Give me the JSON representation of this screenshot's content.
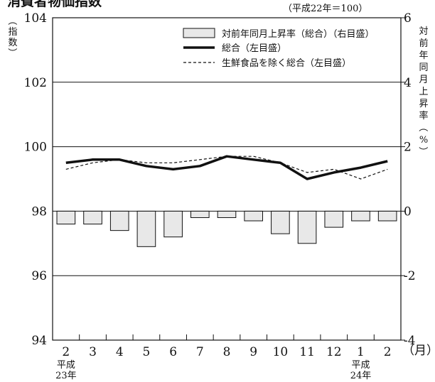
{
  "chart_data": {
    "type": "bar+line",
    "title": "消費者物価指数",
    "base_note": "（平成22年＝100）",
    "left_axis": {
      "label": "（指数）",
      "min": 94,
      "max": 104,
      "ticks": [
        94,
        96,
        98,
        100,
        102,
        104
      ]
    },
    "right_axis": {
      "label": "対前年同月上昇率（%）",
      "min": -4,
      "max": 6,
      "ticks": [
        -4,
        -2,
        0,
        2,
        4,
        6
      ]
    },
    "categories": [
      "2",
      "3",
      "4",
      "5",
      "6",
      "7",
      "8",
      "9",
      "10",
      "11",
      "12",
      "1",
      "2"
    ],
    "x_unit": "（月）",
    "year_labels": [
      {
        "index": 0,
        "era": "平成",
        "year": "23年"
      },
      {
        "index": 11,
        "era": "平成",
        "year": "24年"
      }
    ],
    "grid": "horizontal",
    "legend_position": "top-right",
    "series": [
      {
        "name": "対前年同月上昇率（総合）（右目盛）",
        "type": "bar",
        "axis": "right",
        "color": "#e8e8e8",
        "values": [
          -0.4,
          -0.4,
          -0.6,
          -1.1,
          -0.8,
          -0.2,
          -0.2,
          -0.3,
          -0.7,
          -1.0,
          -0.5,
          -0.3,
          -0.3
        ]
      },
      {
        "name": "総合（左目盛）",
        "type": "line",
        "axis": "left",
        "style": "solid-thick",
        "color": "#111111",
        "values": [
          99.5,
          99.6,
          99.6,
          99.4,
          99.3,
          99.4,
          99.7,
          99.6,
          99.5,
          99.0,
          99.2,
          99.35,
          99.55
        ]
      },
      {
        "name": "生鮮食品を除く総合（左目盛）",
        "type": "line",
        "axis": "left",
        "style": "dashed",
        "color": "#111111",
        "values": [
          99.3,
          99.5,
          99.6,
          99.5,
          99.5,
          99.6,
          99.7,
          99.7,
          99.5,
          99.2,
          99.3,
          99.0,
          99.3
        ]
      }
    ]
  }
}
